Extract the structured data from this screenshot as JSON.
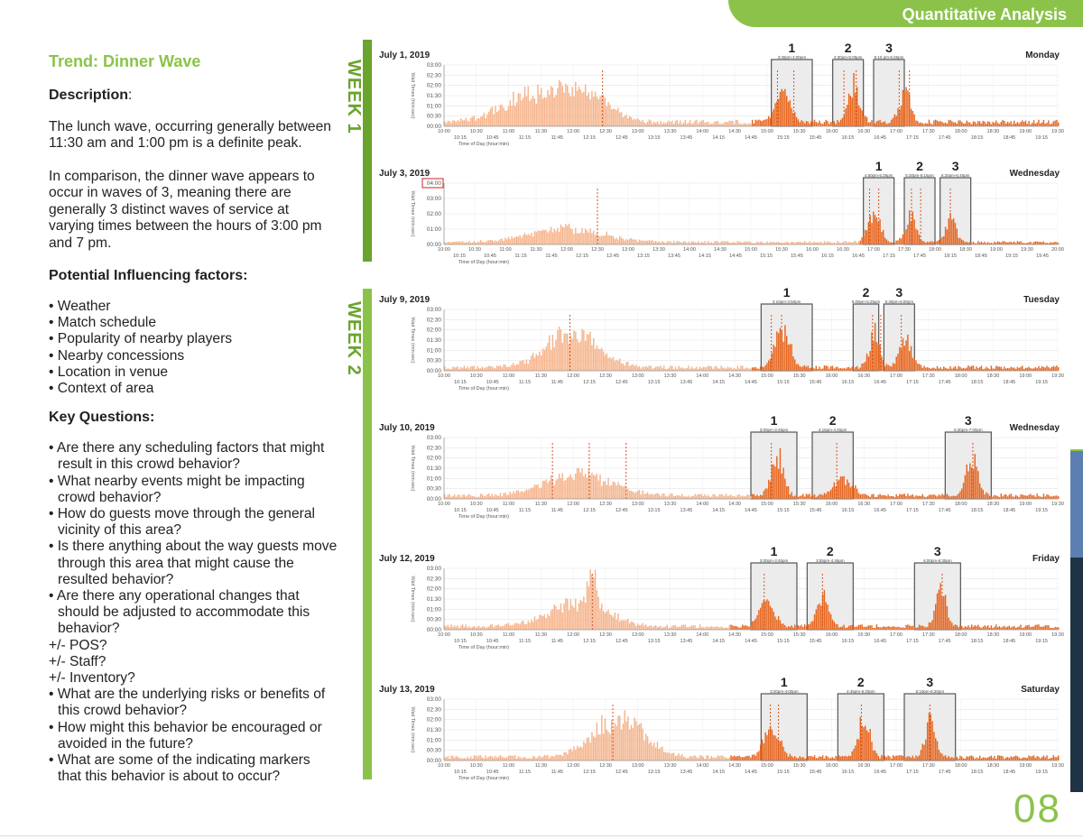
{
  "header": {
    "title": "Quantitative Analysis"
  },
  "left": {
    "trend_title": "Trend: Dinner Wave",
    "description_heading": "Description",
    "description_colon": ":",
    "paragraph1": "The lunch wave, occurring generally between 11:30 am and 1:00 pm is a definite peak.",
    "paragraph2": "In comparison, the dinner wave appears to occur in waves of 3, meaning there are generally 3 distinct waves of service at varying times between the hours of 3:00 pm and 7 pm.",
    "factors_heading": "Potential Influencing factors:",
    "factors": [
      "• Weather",
      "• Match schedule",
      "• Popularity of nearby players",
      "• Nearby concessions",
      "• Location in venue",
      "• Context of area"
    ],
    "questions_heading": "Key Questions:",
    "questions": [
      "• Are there any scheduling factors that might result in this crowd behavior?",
      "• What nearby events might be impacting crowd behavior?",
      "• How do guests move through the general vicinity of this area?",
      "• Is there anything about the way guests move through this area that might cause the resulted behavior?",
      "• Are there any operational changes that should be adjusted to accommodate this behavior?"
    ],
    "sub_items": [
      "+/- POS?",
      "+/- Staff?",
      "+/- Inventory?"
    ],
    "questions_after": [
      "• What are the underlying risks or benefits of this crowd behavior?",
      "• How might this behavior be encouraged or avoided in the future?",
      "• What are some of the indicating markers that this behavior is about to occur?"
    ]
  },
  "weeks": [
    {
      "label": "WEEK 1"
    },
    {
      "label": "WEEK 2"
    }
  ],
  "colors": {
    "brand_green": "#8bc34a",
    "week_green": "#6aa32e",
    "light_bar": "#f5b48c",
    "dark_bar": "#e8661e",
    "marker": "#d9531e",
    "highlight_box": "#cc2222",
    "strip_blue": "#5b7fb0",
    "strip_navy": "#1f3345"
  },
  "page_number": "08",
  "chart_data": [
    {
      "type": "bar",
      "date": "July 1, 2019",
      "day": "Monday",
      "ylabel": "Wait Times (min:sec)",
      "xlabel": "Time of Day (hour:min)",
      "yticks": [
        "00:00",
        "00:30",
        "01:00",
        "01:30",
        "02:00",
        "02:30",
        "03:00"
      ],
      "ymax": 3,
      "xticks_top": [
        "10:00",
        "10:30",
        "11:00",
        "11:30",
        "12:00",
        "12:30",
        "13:00",
        "13:30",
        "14:00",
        "14:30",
        "15:00",
        "15:30",
        "16:00",
        "16:30",
        "17:00",
        "17:30",
        "18:00",
        "18:30",
        "19:00",
        "19:30"
      ],
      "xticks_bottom": [
        "10:15",
        "10:45",
        "11:15",
        "11:45",
        "12:15",
        "12:45",
        "13:15",
        "13:45",
        "14:15",
        "14:45",
        "15:15",
        "15:45",
        "16:15",
        "16:45",
        "17:15",
        "17:45",
        "18:15",
        "18:45",
        "19:15",
        "19:45"
      ],
      "xmin": 600,
      "xmax": 1200,
      "dark_from": 900,
      "baseline": 0.25,
      "peaks": [
        {
          "t": 690,
          "h": 1.6,
          "w": 45
        },
        {
          "t": 740,
          "h": 1.4,
          "w": 30
        },
        {
          "t": 930,
          "h": 1.9,
          "w": 10
        },
        {
          "t": 1000,
          "h": 2.1,
          "w": 8
        },
        {
          "t": 1050,
          "h": 1.6,
          "w": 8
        }
      ],
      "markers": [
        755,
        926,
        942,
        991,
        1003,
        1045,
        1055
      ],
      "waves": [
        {
          "n": "1",
          "label": "3:30pm",
          "label2": "4:00pm",
          "start": 920,
          "end": 960
        },
        {
          "n": "2",
          "label": "4:30pm",
          "label2": "5:05pm",
          "start": 980,
          "end": 1010
        },
        {
          "n": "3",
          "label": "5:10 pm",
          "label2": "5:45pm",
          "start": 1020,
          "end": 1050
        }
      ]
    },
    {
      "type": "bar",
      "date": "July 3, 2019",
      "day": "Wednesday",
      "ylabel": "Wait Times (min:sec)",
      "xlabel": "Time of Day (hour:min)",
      "yticks": [
        "00:00",
        "01:00",
        "02:00",
        "03:00",
        "04:00"
      ],
      "ymax": 4,
      "highlight_top_tick": true,
      "xticks_top": [
        "10:00",
        "10:30",
        "11:00",
        "11:30",
        "12:00",
        "12:30",
        "13:00",
        "13:30",
        "14:00",
        "14:30",
        "15:00",
        "15:30",
        "16:00",
        "16:30",
        "17:00",
        "17:30",
        "18:00",
        "18:30",
        "19:00",
        "19:30",
        "20:00"
      ],
      "xticks_bottom": [
        "10:15",
        "10:45",
        "11:15",
        "11:45",
        "12:15",
        "12:45",
        "13:15",
        "13:45",
        "14:15",
        "14:45",
        "15:15",
        "15:45",
        "16:15",
        "16:45",
        "17:15",
        "17:45",
        "18:15",
        "18:45",
        "19:15",
        "19:45"
      ],
      "xmin": 600,
      "xmax": 1200,
      "dark_from": 1005,
      "baseline": 0.18,
      "peaks": [
        {
          "t": 720,
          "h": 1.0,
          "w": 50
        },
        {
          "t": 1020,
          "h": 2.5,
          "w": 8
        },
        {
          "t": 1055,
          "h": 2.2,
          "w": 7
        },
        {
          "t": 1095,
          "h": 1.8,
          "w": 7
        }
      ],
      "markers": [
        750,
        1016,
        1025,
        1057,
        1066,
        1095
      ],
      "waves": [
        {
          "n": "1",
          "label": "4:50pm",
          "label2": "5:25pm",
          "start": 1010,
          "end": 1040
        },
        {
          "n": "2",
          "label": "5:30pm",
          "label2": "6:15pm",
          "start": 1050,
          "end": 1080
        },
        {
          "n": "3",
          "label": "6:20pm",
          "label2": "6:45pm",
          "start": 1085,
          "end": 1115
        }
      ]
    },
    {
      "type": "bar",
      "date": "July 9, 2019",
      "day": "Tuesday",
      "ylabel": "Wait Times (min:sec)",
      "xlabel": "Time of Day (hour:min)",
      "yticks": [
        "00:00",
        "00:30",
        "01:00",
        "01:30",
        "02:00",
        "02:30",
        "03:00"
      ],
      "ymax": 3,
      "xticks_top": [
        "10:00",
        "10:30",
        "11:00",
        "11:30",
        "12:00",
        "12:30",
        "13:00",
        "13:30",
        "14:00",
        "14:30",
        "15:00",
        "15:30",
        "16:00",
        "16:30",
        "17:00",
        "17:30",
        "18:00",
        "18:30",
        "19:00",
        "19:30"
      ],
      "xticks_bottom": [
        "10:15",
        "10:45",
        "11:15",
        "11:45",
        "12:15",
        "12:45",
        "13:15",
        "13:45",
        "14:15",
        "14:45",
        "15:15",
        "15:45",
        "16:15",
        "16:45",
        "17:15",
        "17:45",
        "18:15",
        "18:45",
        "19:15",
        "19:45"
      ],
      "xmin": 600,
      "xmax": 1200,
      "dark_from": 900,
      "baseline": 0.2,
      "peaks": [
        {
          "t": 725,
          "h": 2.0,
          "w": 35
        },
        {
          "t": 930,
          "h": 2.2,
          "w": 10
        },
        {
          "t": 1020,
          "h": 2.0,
          "w": 7
        },
        {
          "t": 1050,
          "h": 1.8,
          "w": 8
        }
      ],
      "markers": [
        723,
        920,
        930,
        1019,
        1027,
        1047
      ],
      "waves": [
        {
          "n": "1",
          "label": "3:10pm",
          "label2": "3:50pm",
          "start": 910,
          "end": 960
        },
        {
          "n": "2",
          "label": "5:00pm",
          "label2": "5:25pm",
          "start": 1000,
          "end": 1025
        },
        {
          "n": "3",
          "label": "5:30pm",
          "label2": "6:00pm",
          "start": 1030,
          "end": 1060
        }
      ]
    },
    {
      "type": "bar",
      "date": "July 10, 2019",
      "day": "Wednesday",
      "ylabel": "Wait Times (min:sec)",
      "xlabel": "Time of Day (hour:min)",
      "yticks": [
        "00:00",
        "00:30",
        "01:00",
        "01:30",
        "02:00",
        "02:30",
        "03:00"
      ],
      "ymax": 3,
      "xticks_top": [
        "10:00",
        "10:30",
        "11:00",
        "11:30",
        "12:00",
        "12:30",
        "13:00",
        "13:30",
        "14:00",
        "14:30",
        "15:00",
        "15:30",
        "16:00",
        "16:30",
        "17:00",
        "17:30",
        "18:00",
        "18:30",
        "19:00",
        "19:30"
      ],
      "xticks_bottom": [
        "10:15",
        "10:45",
        "11:15",
        "11:45",
        "12:15",
        "12:45",
        "13:15",
        "13:45",
        "14:15",
        "14:45",
        "15:15",
        "15:45",
        "16:15",
        "16:45",
        "17:15",
        "17:45",
        "18:15",
        "18:45",
        "19:15",
        "19:45"
      ],
      "xmin": 600,
      "xmax": 1200,
      "dark_from": 900,
      "baseline": 0.2,
      "peaks": [
        {
          "t": 730,
          "h": 1.2,
          "w": 45
        },
        {
          "t": 925,
          "h": 2.3,
          "w": 8
        },
        {
          "t": 990,
          "h": 1.0,
          "w": 12
        },
        {
          "t": 1115,
          "h": 2.2,
          "w": 8
        }
      ],
      "markers": [
        706,
        742,
        778,
        920,
        984,
        1117
      ],
      "waves": [
        {
          "n": "1",
          "label": "3:00pm",
          "label2": "3:45pm",
          "start": 900,
          "end": 945
        },
        {
          "n": "2",
          "label": "4:15pm",
          "label2": "4:45pm",
          "start": 960,
          "end": 1000
        },
        {
          "n": "3",
          "label": "6:30pm",
          "label2": "7:00pm",
          "start": 1090,
          "end": 1135
        }
      ]
    },
    {
      "type": "bar",
      "date": "July 12, 2019",
      "day": "Friday",
      "ylabel": "Wait Times (min:sec)",
      "xlabel": "Time of Day (hour:min)",
      "yticks": [
        "00:00",
        "00:30",
        "01:00",
        "01:30",
        "02:00",
        "02:30",
        "03:00"
      ],
      "ymax": 3,
      "xticks_top": [
        "10:00",
        "10:30",
        "11:00",
        "11:30",
        "12:00",
        "12:30",
        "13:00",
        "13:30",
        "14:00",
        "14:30",
        "15:00",
        "15:30",
        "16:00",
        "16:30",
        "17:00",
        "17:30",
        "18:00",
        "18:30",
        "19:00",
        "19:30"
      ],
      "xticks_bottom": [
        "10:15",
        "10:45",
        "11:15",
        "11:45",
        "12:15",
        "12:45",
        "13:15",
        "13:45",
        "14:15",
        "14:45",
        "15:15",
        "15:45",
        "16:15",
        "16:45",
        "17:15",
        "17:45",
        "18:15",
        "18:45",
        "19:15",
        "19:45"
      ],
      "xmin": 600,
      "xmax": 1200,
      "dark_from": 880,
      "baseline": 0.2,
      "peaks": [
        {
          "t": 730,
          "h": 1.3,
          "w": 40
        },
        {
          "t": 745,
          "h": 2.2,
          "w": 6
        },
        {
          "t": 915,
          "h": 1.4,
          "w": 10
        },
        {
          "t": 970,
          "h": 1.8,
          "w": 8
        },
        {
          "t": 1085,
          "h": 2.0,
          "w": 7
        }
      ],
      "markers": [
        745,
        913,
        970,
        1087
      ],
      "waves": [
        {
          "n": "1",
          "label": "3:00pm",
          "label2": "3:45pm",
          "start": 900,
          "end": 945
        },
        {
          "n": "2",
          "label": "3:55pm",
          "label2": "4:45pm",
          "start": 955,
          "end": 1000
        },
        {
          "n": "3",
          "label": "6:00pm",
          "label2": "6:30pm",
          "start": 1060,
          "end": 1105
        }
      ]
    },
    {
      "type": "bar",
      "date": "July 13, 2019",
      "day": "Saturday",
      "ylabel": "Wait Times (min:sec)",
      "xlabel": "Time of Day (hour:min)",
      "yticks": [
        "00:00",
        "00:30",
        "01:00",
        "01:30",
        "02:00",
        "02:30",
        "03:00"
      ],
      "ymax": 3,
      "xticks_top": [
        "10:00",
        "10:30",
        "11:00",
        "11:30",
        "12:00",
        "12:30",
        "13:00",
        "13:30",
        "14:00",
        "14:30",
        "15:00",
        "15:30",
        "16:00",
        "16:30",
        "17:00",
        "17:30",
        "18:00",
        "18:30",
        "19:00",
        "19:30"
      ],
      "xticks_bottom": [
        "10:15",
        "10:45",
        "11:15",
        "11:45",
        "12:15",
        "12:45",
        "13:15",
        "13:45",
        "14:15",
        "14:45",
        "15:15",
        "15:45",
        "16:15",
        "16:45",
        "17:15",
        "17:45",
        "18:15",
        "18:45",
        "19:15",
        "19:45"
      ],
      "xmin": 600,
      "xmax": 1200,
      "dark_from": 880,
      "baseline": 0.2,
      "peaks": [
        {
          "t": 770,
          "h": 2.2,
          "w": 35
        },
        {
          "t": 920,
          "h": 1.8,
          "w": 10
        },
        {
          "t": 1010,
          "h": 2.2,
          "w": 8
        },
        {
          "t": 1075,
          "h": 2.0,
          "w": 7
        }
      ],
      "markers": [
        765,
        919,
        927,
        1008,
        1075
      ],
      "waves": [
        {
          "n": "1",
          "label": "3:20pm",
          "label2": "4:00pm",
          "start": 910,
          "end": 955
        },
        {
          "n": "2",
          "label": "4:45pm",
          "label2": "5:20pm",
          "start": 985,
          "end": 1030
        },
        {
          "n": "3",
          "label": "6:10pm",
          "label2": "6:20pm",
          "start": 1050,
          "end": 1100
        }
      ]
    }
  ]
}
